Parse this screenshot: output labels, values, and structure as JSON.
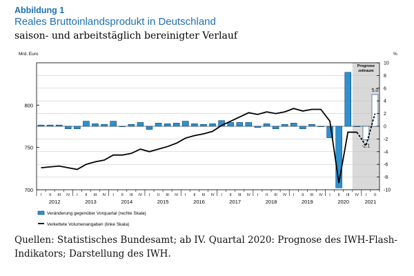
{
  "header": {
    "figure_label": "Abbildung 1",
    "title": "Reales Bruttoinlandsprodukt in Deutschland",
    "subtitle": "saison- und arbeitstäglich bereinigter Verlauf"
  },
  "footer": {
    "source": "Quellen: Statistisches Bundesamt; ab IV. Quartal 2020: Prognose des IWH-Flash-Indikators; Darstellung des IWH."
  },
  "colors": {
    "bar_fill": "#2e91cf",
    "bar_stroke": "#0b3f6b",
    "forecast_bar_fill": "#ffffff",
    "line": "#000000",
    "forecast_shade": "#d9d9d9",
    "grid": "#bfbfbf"
  },
  "chart_data": {
    "type": "bar",
    "left_axis_unit": "Mrd. Euro",
    "right_axis_unit": "%",
    "left_ylim": [
      700,
      850
    ],
    "left_ticks": [
      "700",
      "750",
      "800"
    ],
    "right_ylim": [
      -10,
      10
    ],
    "right_ticks": [
      "-10",
      "-8",
      "-6",
      "-4",
      "-2",
      "0",
      "2",
      "4",
      "6",
      "8",
      "10"
    ],
    "quarters": [
      "I",
      "II",
      "III",
      "IV",
      "I",
      "II",
      "III",
      "IV",
      "I",
      "II",
      "III",
      "IV",
      "I",
      "II",
      "III",
      "IV",
      "I",
      "II",
      "III",
      "IV",
      "I",
      "II",
      "III",
      "IV",
      "I",
      "II",
      "III",
      "IV",
      "I",
      "II",
      "III",
      "IV",
      "I",
      "II",
      "III",
      "IV",
      "I",
      "II"
    ],
    "years": [
      "2012",
      "2013",
      "2014",
      "2015",
      "2016",
      "2017",
      "2018",
      "2019",
      "2020",
      "2021"
    ],
    "grid": true,
    "forecast_label_line1": "Prognose",
    "forecast_label_line2": "zeitraum",
    "forecast_start_index": 35,
    "annotations": [
      {
        "index": 36,
        "text": "-2.1"
      },
      {
        "index": 37,
        "text": "5.0"
      }
    ],
    "series": [
      {
        "name": "Veränderung gegenüber Vorquartal (rechte Skala)",
        "kind": "bar",
        "values": [
          0.2,
          0.2,
          0.2,
          -0.4,
          -0.4,
          0.8,
          0.4,
          0.3,
          0.8,
          0.0,
          0.3,
          0.6,
          -0.5,
          0.5,
          0.4,
          0.5,
          0.8,
          0.4,
          0.3,
          0.4,
          0.9,
          0.6,
          0.6,
          0.6,
          -0.2,
          0.4,
          -0.4,
          0.3,
          0.5,
          -0.4,
          0.3,
          0.0,
          -1.8,
          -9.7,
          8.5,
          0.0,
          -2.1,
          5.0
        ]
      },
      {
        "name": "Verkettete Volumenangaben (linke Skala)",
        "kind": "line",
        "values": [
          726,
          727,
          728,
          726,
          724,
          730,
          733,
          735,
          741,
          741,
          743,
          748,
          745,
          748,
          751,
          755,
          761,
          764,
          766,
          769,
          776,
          781,
          786,
          791,
          789,
          792,
          790,
          792,
          796,
          793,
          795,
          795,
          781,
          708,
          768,
          768,
          752,
          790
        ]
      }
    ]
  }
}
